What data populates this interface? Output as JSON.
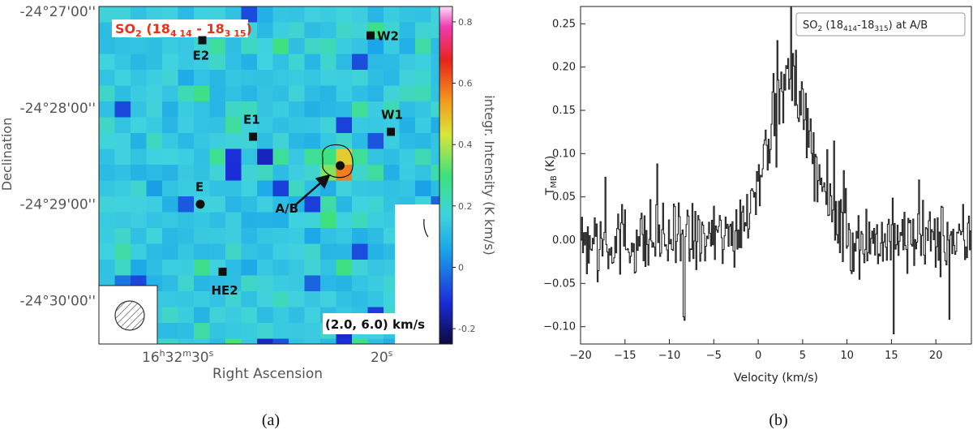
{
  "chart_data": [
    {
      "type": "heatmap",
      "panel": "(a)",
      "title": "SO2 (18 4 14 - 18 3 15)",
      "title_parts": {
        "species": "SO",
        "sub": "2",
        "open": " (18",
        "sub1": "4 14",
        "dash": " - 18",
        "sub2": "3 15",
        "close": ")"
      },
      "velocity_range_label": "(2.0, 6.0) km/s",
      "xlabel": "Right Ascension",
      "ylabel": "Declination",
      "colorbar_label": "integr. Intensity (K km/s)",
      "colorbar_range": [
        -0.25,
        0.85
      ],
      "colorbar_ticks": [
        "0.8",
        "0.6",
        "0.4",
        "0.2",
        "0",
        "-0.2"
      ],
      "dec_ticks": [
        "-24°27'00''",
        "-24°28'00''",
        "-24°29'00''",
        "-24°30'00''"
      ],
      "ra_ticks": [
        {
          "main": "16",
          "h": "h",
          "mm": "32",
          "m": "m",
          "ss": "30",
          "s": "s"
        },
        {
          "main": "20",
          "s": "s"
        }
      ],
      "sources": [
        {
          "name": "E2",
          "ra_s": 28.9,
          "dec_s": -27.3
        },
        {
          "name": "W2",
          "ra_s": 20.6,
          "dec_s": -27.25
        },
        {
          "name": "E1",
          "ra_s": 26.4,
          "dec_s": -28.3
        },
        {
          "name": "W1",
          "ra_s": 19.6,
          "dec_s": -28.25
        },
        {
          "name": "E",
          "ra_s": 29.0,
          "dec_s": -29.0
        },
        {
          "name": "A/B",
          "ra_s": 22.1,
          "dec_s": -28.6
        },
        {
          "name": "HE2",
          "ra_s": 27.9,
          "dec_s": -29.7
        }
      ]
    },
    {
      "type": "line",
      "panel": "(b)",
      "legend": "SO2 (18414-18315) at A/B",
      "legend_parts": {
        "species": "SO",
        "sub": "2",
        "open": " (18",
        "sub1": "414",
        "dash": "-18",
        "sub2": "315",
        "close": ") at A/B"
      },
      "xlabel": "Velocity (km/s)",
      "ylabel": "TMB (K)",
      "ylabel_parts": {
        "main": "T",
        "sub": "MB",
        "rest": " (K)"
      },
      "xlim": [
        -20,
        24
      ],
      "ylim": [
        -0.12,
        0.27
      ],
      "xticks": [
        -20,
        -15,
        -10,
        -5,
        0,
        5,
        10,
        15,
        20
      ],
      "yticks": [
        0.25,
        0.2,
        0.15,
        0.1,
        0.05,
        0.0,
        -0.05,
        -0.1
      ],
      "ytick_labels": [
        "0.25",
        "0.20",
        "0.15",
        "0.10",
        "0.05",
        "0.00",
        "-0.05",
        "-0.10"
      ],
      "profile": {
        "center_kms": 3.4,
        "peak_K": 0.18,
        "width_kms": 2.6,
        "noise_K": 0.042,
        "channel_kms": 0.11
      }
    }
  ],
  "captions": {
    "a": "(a)",
    "b": "(b)"
  },
  "colors": {
    "map_background": "#36c9e3",
    "contour": "#111111",
    "marker": "#111111",
    "title_red": "#e8321a",
    "line": "#222222"
  }
}
